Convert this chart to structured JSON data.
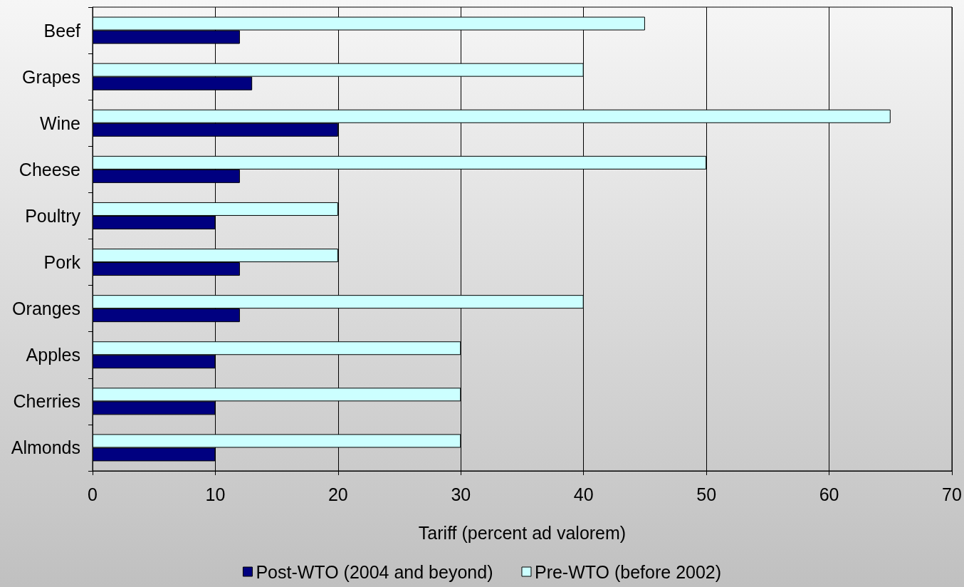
{
  "chart_data": {
    "type": "bar",
    "orientation": "horizontal",
    "categories": [
      "Beef",
      "Grapes",
      "Wine",
      "Cheese",
      "Poultry",
      "Pork",
      "Oranges",
      "Apples",
      "Cherries",
      "Almonds"
    ],
    "series": [
      {
        "name": "Post-WTO (2004 and beyond)",
        "color": "#000080",
        "values": [
          12,
          13,
          20,
          12,
          10,
          12,
          12,
          10,
          10,
          10
        ]
      },
      {
        "name": "Pre-WTO (before 2002)",
        "color": "#ccffff",
        "values": [
          45,
          40,
          65,
          50,
          20,
          20,
          40,
          30,
          30,
          30
        ]
      }
    ],
    "xlabel": "Tariff (percent ad valorem)",
    "xlim": [
      0,
      70
    ],
    "xticks": [
      0,
      10,
      20,
      30,
      40,
      50,
      60,
      70
    ],
    "grid": "x",
    "legend": "bottom"
  }
}
